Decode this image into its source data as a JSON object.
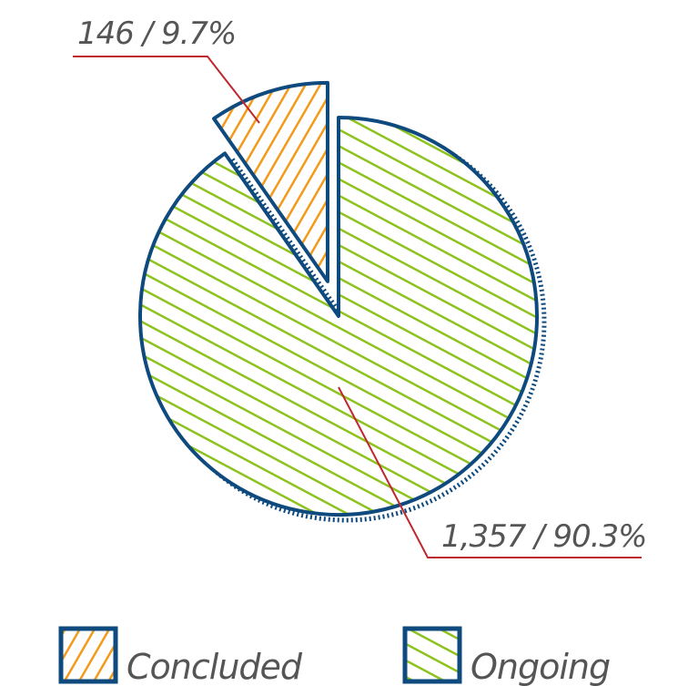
{
  "chart_data": {
    "type": "pie",
    "categories": [
      "Concluded",
      "Ongoing"
    ],
    "values": [
      146,
      1357
    ],
    "value_labels": [
      "146 / 9.7%",
      "1,357 / 90.3%"
    ],
    "colors": [
      "#f39a1a",
      "#8dc21f"
    ],
    "legend": "bottom"
  }
}
